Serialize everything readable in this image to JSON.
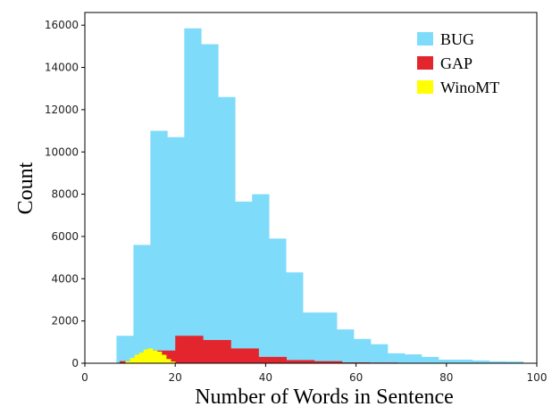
{
  "chart_data": {
    "type": "histogram",
    "xlabel": "Number of Words in Sentence",
    "ylabel": "Count",
    "xlim": [
      0,
      100
    ],
    "ylim": [
      0,
      16600
    ],
    "xticks": [
      0,
      20,
      40,
      60,
      80,
      100
    ],
    "yticks": [
      0,
      2000,
      4000,
      6000,
      8000,
      10000,
      12000,
      14000,
      16000
    ],
    "legend": "upper right",
    "series": [
      {
        "name": "BUG",
        "color": "#7fdbfa",
        "bins": [
          3.25,
          7,
          10.75,
          14.5,
          18.25,
          22,
          25.75,
          29.5,
          33.25,
          37,
          40.75,
          44.5,
          48.25,
          52,
          55.75,
          59.5,
          63.25,
          67,
          70.75,
          74.5,
          78.25,
          82,
          85.75,
          89.5,
          93.25,
          97
        ],
        "values": [
          20,
          1300,
          5600,
          11000,
          10700,
          15850,
          15100,
          12600,
          7650,
          8000,
          5900,
          4300,
          2400,
          2400,
          1600,
          1150,
          900,
          470,
          420,
          300,
          170,
          170,
          130,
          90,
          80
        ]
      },
      {
        "name": "GAP",
        "color": "#e3262e",
        "bins": [
          7.7,
          13.85,
          20,
          26.15,
          32.3,
          38.45,
          44.6,
          50.75,
          56.9,
          63.05,
          69.2,
          75.35,
          81.5
        ],
        "values": [
          100,
          600,
          1300,
          1100,
          700,
          300,
          150,
          100,
          40,
          30,
          20,
          10
        ]
      },
      {
        "name": "WinoMT",
        "color": "#ffff00",
        "bins": [
          9,
          10,
          11,
          12,
          13,
          14,
          15,
          16,
          17,
          18,
          19,
          20
        ],
        "values": [
          100,
          250,
          400,
          500,
          650,
          700,
          600,
          550,
          400,
          200,
          80
        ]
      }
    ]
  }
}
